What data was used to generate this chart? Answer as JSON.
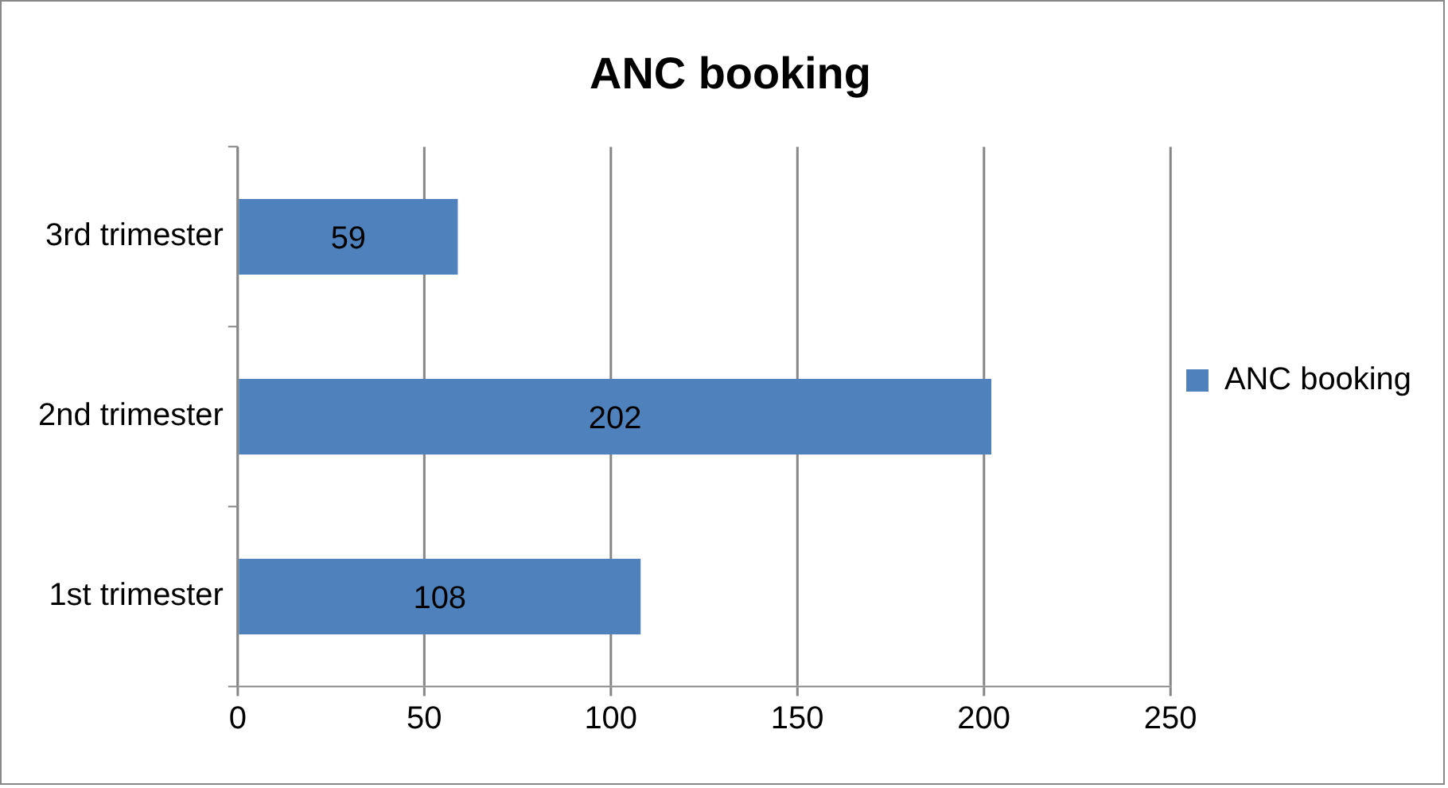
{
  "chart_data": {
    "type": "bar",
    "orientation": "horizontal",
    "title": "ANC booking",
    "categories": [
      "3rd trimester",
      "2nd trimester",
      "1st trimester"
    ],
    "series": [
      {
        "name": "ANC booking",
        "color": "#4f81bd",
        "values": [
          59,
          202,
          108
        ]
      }
    ],
    "xlim": [
      0,
      250
    ],
    "xticks": [
      0,
      50,
      100,
      150,
      200,
      250
    ],
    "grid": "x",
    "legend": "right",
    "data_labels": true
  }
}
